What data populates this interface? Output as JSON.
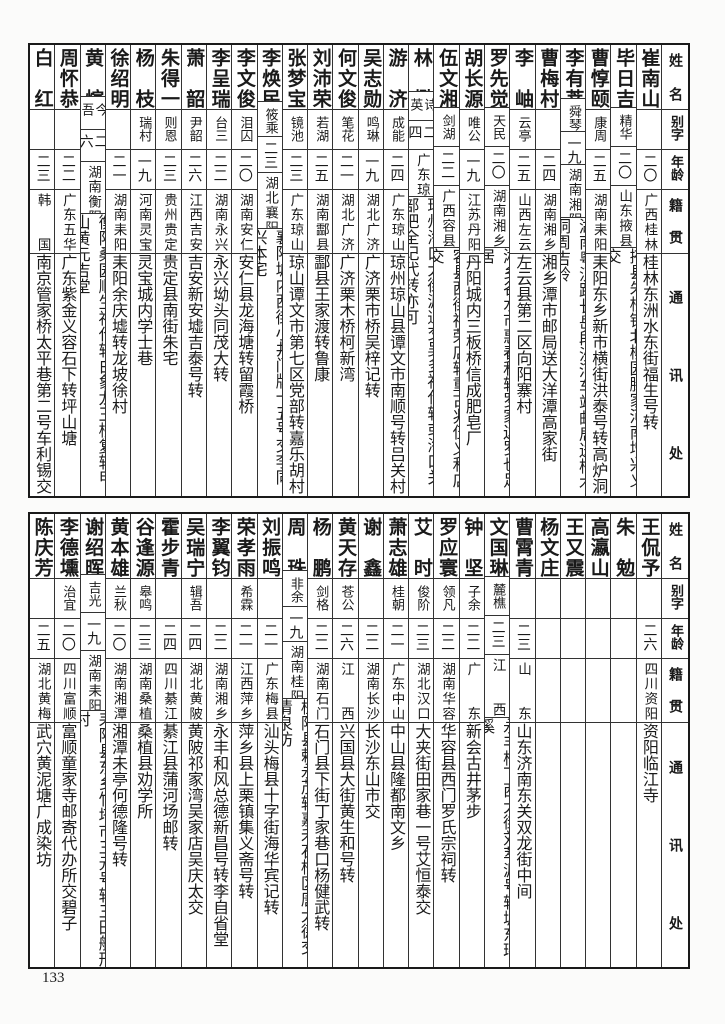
{
  "headers": {
    "name": "姓名",
    "alias": "别字",
    "age": "年龄",
    "native": "籍贯",
    "address": "通讯处"
  },
  "top": {
    "rows": [
      {
        "name": "崔南山",
        "alias": "",
        "age": "二〇",
        "native": "广西桂林",
        "address": "桂林东洲水东街福生号转"
      },
      {
        "name": "毕日吉",
        "alias": "精华",
        "age": "二〇",
        "native": "山东掖县",
        "address": "掖县朱桥镇北柳园滕家河南增兴义交"
      },
      {
        "name": "曹惇颐",
        "alias": "康周",
        "age": "二五",
        "native": "湖南耒阳",
        "address": "耒阳东乡新市横街洪泰号转高炉洞"
      },
      {
        "name": "李有莘",
        "alias": "舜琴",
        "age": "一九",
        "native": "湖南湘阴",
        "address": "湖南粤汉路长岳段沙河车站邮局送梓木洞周吉岭"
      },
      {
        "name": "曹梅村",
        "alias": "",
        "age": "二四",
        "native": "湖南湘乡",
        "address": "湘乡潭市邮局送大洋潭高家街"
      },
      {
        "name": "李岫",
        "alias": "云亭",
        "age": "二五",
        "native": "山西左云",
        "address": "左云县第二区向阳寨村"
      },
      {
        "name": "罗先觉",
        "alias": "天民",
        "age": "二〇",
        "native": "湖南湘乡",
        "address": "湘乡谷水市惠春和转罗家边罗也足居"
      },
      {
        "name": "胡长源",
        "alias": "唯公",
        "age": "一九",
        "native": "江苏丹阳",
        "address": "丹阳城内三板桥信成肥皂厂"
      },
      {
        "name": "伍文湘",
        "alias": "剑湖",
        "age": "二二",
        "native": "广西容县",
        "address": "容县西街祥荣店转重古兆伍义和店交"
      },
      {
        "name": "林懋",
        "alias": "诗英",
        "age": "二四",
        "native": "广东琼山",
        "address": "琼州海口大街源通交吴多福代转或海口关部把全记代转亦可"
      },
      {
        "name": "游济",
        "alias": "成能",
        "age": "二四",
        "native": "广东琼山",
        "address": "琼州琼山县谭文市南顺号转吕关村"
      },
      {
        "name": "吴志勋",
        "alias": "鸣琳",
        "age": "一九",
        "native": "湖北广济",
        "address": "广济栗市桥吴梓记转"
      },
      {
        "name": "何文俊",
        "alias": "笔花",
        "age": "二一",
        "native": "湖北广济",
        "address": "广济栗木桥柯新湾"
      },
      {
        "name": "刘沛荣",
        "alias": "若湖",
        "age": "二五",
        "native": "湖南酃县",
        "address": "酃县王家渡转鲁康"
      },
      {
        "name": "张梦宝",
        "alias": "镜池",
        "age": "二三",
        "native": "广东琼山",
        "address": "琼山谭文市第七区党部转嘉乐胡村"
      },
      {
        "name": "李焕民",
        "alias": "筱乘",
        "age": "二三",
        "native": "湖北襄阳",
        "address": "襄阳城内西街小井门牌十五号交李同兴本宅"
      },
      {
        "name": "李文俊",
        "alias": "泪囚",
        "age": "二〇",
        "native": "湖南安仁",
        "address": "安仁县龙海塘转留霞桥"
      },
      {
        "name": "李呈瑞",
        "alias": "台三",
        "age": "二二",
        "native": "湖南永兴",
        "address": "永兴坳头同茂大转"
      },
      {
        "name": "萧韶",
        "alias": "尹韶",
        "age": "二六",
        "native": "江西吉安",
        "address": "吉安新安墟吉泰号转"
      },
      {
        "name": "朱得一",
        "alias": "则恩",
        "age": "二三",
        "native": "贵州贵定",
        "address": "贵定县南街朱宅"
      },
      {
        "name": "杨枝",
        "alias": "瑞村",
        "age": "一九",
        "native": "河南灵宝",
        "address": "灵宝城内学士巷"
      },
      {
        "name": "徐绍明",
        "alias": "",
        "age": "二一",
        "native": "湖南耒阳",
        "address": "耒阳余庆墟转龙坡徐村"
      },
      {
        "name": "黄煊",
        "alias": "今吾",
        "age": "二六",
        "native": "湖南衡阳",
        "address": "衡阳桑园顺生福代转白象龙王桥复转甲山黄元吉堂"
      },
      {
        "name": "周怀恭",
        "alias": "",
        "age": "二二",
        "native": "广东五华",
        "address": "广东紫金义容石下转坪山塘"
      },
      {
        "name": "白红",
        "alias": "",
        "age": "二三",
        "native": "韩国",
        "address": "南京管家桥太平巷第二号车利锡交"
      }
    ]
  },
  "bottom": {
    "rows": [
      {
        "name": "王侃予",
        "alias": "",
        "age": "二六",
        "native": "四川资阳",
        "address": "资阳临江寺"
      },
      {
        "name": "朱勉",
        "alias": "",
        "age": "",
        "native": "",
        "address": ""
      },
      {
        "name": "高瀛山",
        "alias": "",
        "age": "",
        "native": "",
        "address": ""
      },
      {
        "name": "王又震",
        "alias": "",
        "age": "",
        "native": "",
        "address": ""
      },
      {
        "name": "杨文庄",
        "alias": "",
        "age": "",
        "native": "",
        "address": ""
      },
      {
        "name": "曹霄青",
        "alias": "",
        "age": "二三",
        "native": "山东",
        "address": "山东济南东关双龙街中间"
      },
      {
        "name": "文国琳",
        "alias": "麓樵",
        "age": "二三",
        "native": "江西",
        "address": "永丰桥下西大街刘萃源号转城东瑶溪"
      },
      {
        "name": "钟坚",
        "alias": "子余",
        "age": "二二",
        "native": "广东",
        "address": "新会古井茅步"
      },
      {
        "name": "罗应寰",
        "alias": "领凡",
        "age": "二二",
        "native": "湖南华容",
        "address": "华容县西门罗氏宗祠转"
      },
      {
        "name": "艾时",
        "alias": "俊阶",
        "age": "二三",
        "native": "湖北汉口",
        "address": "大夹街田家巷一号艾恒泰交"
      },
      {
        "name": "萧志雄",
        "alias": "桂朝",
        "age": "二一",
        "native": "广东中山",
        "address": "中山县隆都南文乡"
      },
      {
        "name": "谢鑫",
        "alias": "",
        "age": "二二",
        "native": "湖南长沙",
        "address": "长沙东山市交"
      },
      {
        "name": "黄天存",
        "alias": "苍公",
        "age": "二六",
        "native": "江西",
        "address": "兴国县大街黄生和号转"
      },
      {
        "name": "杨鹏",
        "alias": "剑格",
        "age": "二二",
        "native": "湖南石门",
        "address": "石门县下街丁家巷口杨健武转"
      },
      {
        "name": "周珠",
        "alias": "非余",
        "age": "一九",
        "native": "湖南桂阳",
        "address": "桂阳县赖永茂转嘉禾石桥区唐大德交清泉坊"
      },
      {
        "name": "刘振鸣",
        "alias": "",
        "age": "二一",
        "native": "广东梅县",
        "address": "汕头梅县十字街海华宾记转"
      },
      {
        "name": "荣孝雨",
        "alias": "希霖",
        "age": "二一",
        "native": "江西萍乡",
        "address": "萍乡县上栗镇集义斋号转"
      },
      {
        "name": "李翼钧",
        "alias": "",
        "age": "二二",
        "native": "湖南湘乡",
        "address": "永丰和风总德新昌号转李自省堂"
      },
      {
        "name": "吴瑞宁",
        "alias": "辑吾",
        "age": "二四",
        "native": "湖北黄陂",
        "address": "黄陂祁家湾吴家店吴庆太交"
      },
      {
        "name": "霍步青",
        "alias": "",
        "age": "二四",
        "native": "四川綦江",
        "address": "綦江县蒲河场邮转"
      },
      {
        "name": "谷逢源",
        "alias": "皋鸣",
        "age": "二三",
        "native": "湖南桑植",
        "address": "桑植县劝学所"
      },
      {
        "name": "黄本雄",
        "alias": "兰秋",
        "age": "二〇",
        "native": "湖南湘潭",
        "address": "湘潭未亭何德隆号转"
      },
      {
        "name": "谢绍晖",
        "alias": "吉光",
        "age": "一九",
        "native": "湖南耒阳",
        "address": "耒阳县东乡竹塔市三元号转三田船形村"
      },
      {
        "name": "李德壎",
        "alias": "治宜",
        "age": "二〇",
        "native": "四川富顺",
        "address": "富顺童家寺邮寄代办所交碧子"
      },
      {
        "name": "陈庆芳",
        "alias": "",
        "age": "二五",
        "native": "湖北黄梅",
        "address": "武穴黄泥塘广成染坊"
      }
    ]
  },
  "page_number": "133"
}
